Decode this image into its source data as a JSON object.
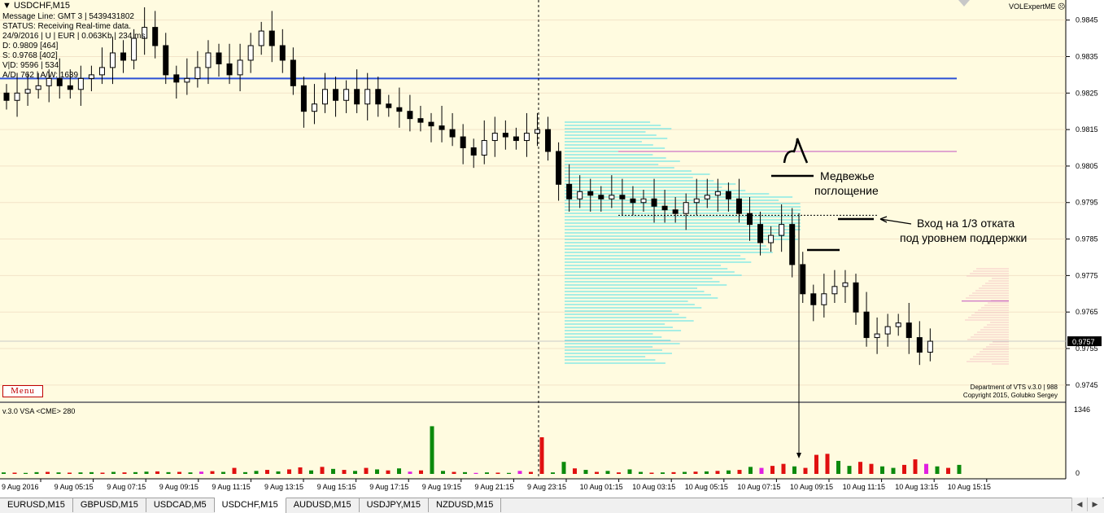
{
  "window": {
    "symbol_title": "USDCHF,M15",
    "info_lines": [
      "Message Line: GMT 3 | 5439431802",
      "STATUS:  Receiving Real-time data.",
      "24/9/2016 | U | EUR | 0.063Kb | 234 ms",
      "D: 0.9809  [464]",
      "S: 0.9768  [402]",
      "V|D: 9596 | 534",
      "A/D: 762 | A/W: 1639"
    ],
    "menu_label": "Menu",
    "vol_expert_label": "VOLExpertME",
    "copyright_lines": [
      "Department of VTS  v.3.0 | 988",
      "Copyright 2015, Golubko Sergey"
    ],
    "indicator_label": "v.3.0 VSA <CME> 280"
  },
  "annotations": {
    "bearish_engulfing": [
      "Медвежье",
      "поглощение"
    ],
    "entry_note": [
      "Вход на 1/3 отката",
      "под уровнем поддержки"
    ]
  },
  "tabs": [
    "EURUSD,M15",
    "GBPUSD,M15",
    "USDCAD,M5",
    "USDCHF,M15",
    "AUDUSD,M15",
    "USDJPY,M15",
    "NZDUSD,M15"
  ],
  "active_tab": "USDCHF,M15",
  "colors": {
    "chart_bg": "#fffbe0",
    "resistance_line": "#2b50d6",
    "profile": "#4fe0e8",
    "level_line": "#c050c0",
    "volume_up": "#0c8a0c",
    "volume_down": "#e01010",
    "volume_climax": "#e020e0",
    "price_tag": "#000000"
  },
  "chart_data": [
    {
      "type": "candlestick",
      "instrument": "USDCHF",
      "timeframe": "M15",
      "y_axis_ticks": [
        "0.9845",
        "0.9835",
        "0.9825",
        "0.9815",
        "0.9805",
        "0.9795",
        "0.9785",
        "0.9775",
        "0.9765",
        "0.9755",
        "0.9745"
      ],
      "ylim": [
        0.97405,
        0.98505
      ],
      "current_price": "0.9757",
      "x_tick_labels": [
        "9 Aug 2016",
        "9 Aug 05:15",
        "9 Aug 07:15",
        "9 Aug 09:15",
        "9 Aug 11:15",
        "9 Aug 13:15",
        "9 Aug 15:15",
        "9 Aug 17:15",
        "9 Aug 19:15",
        "9 Aug 21:15",
        "9 Aug 23:15",
        "10 Aug 01:15",
        "10 Aug 03:15",
        "10 Aug 05:15",
        "10 Aug 07:15",
        "10 Aug 09:15",
        "10 Aug 11:15",
        "10 Aug 13:15",
        "10 Aug 15:15"
      ],
      "levels": [
        {
          "value": 0.9829
        },
        {
          "value": 0.9809
        },
        {
          "value": 0.9768
        },
        {
          "value": 0.97915
        }
      ],
      "close_series": [
        0.9823,
        0.9825,
        0.9826,
        0.9827,
        0.9829,
        0.9827,
        0.9826,
        0.9829,
        0.983,
        0.9832,
        0.9836,
        0.9834,
        0.984,
        0.9843,
        0.9838,
        0.983,
        0.9828,
        0.9829,
        0.9832,
        0.9836,
        0.9833,
        0.983,
        0.9834,
        0.9838,
        0.9842,
        0.9838,
        0.9834,
        0.9827,
        0.982,
        0.9822,
        0.9826,
        0.9823,
        0.9826,
        0.9822,
        0.9826,
        0.9822,
        0.9821,
        0.982,
        0.9818,
        0.9817,
        0.9816,
        0.9815,
        0.9813,
        0.981,
        0.9808,
        0.9812,
        0.9814,
        0.9813,
        0.9812,
        0.9814,
        0.9815,
        0.9809,
        0.98,
        0.9796,
        0.9798,
        0.9797,
        0.9796,
        0.9797,
        0.9796,
        0.9795,
        0.9796,
        0.9794,
        0.9793,
        0.9792,
        0.9795,
        0.9796,
        0.9797,
        0.9798,
        0.9796,
        0.9792,
        0.9789,
        0.9784,
        0.9786,
        0.9789,
        0.9778,
        0.977,
        0.9767,
        0.977,
        0.9772,
        0.9773,
        0.9765,
        0.9758,
        0.9759,
        0.9761,
        0.9762,
        0.9758,
        0.9754,
        0.9757
      ],
      "volume_scale_label": "1346",
      "volume_zero_label": "0",
      "volumes": [
        30,
        25,
        20,
        35,
        40,
        30,
        25,
        30,
        35,
        25,
        40,
        30,
        35,
        45,
        50,
        35,
        40,
        30,
        45,
        55,
        40,
        120,
        35,
        60,
        80,
        50,
        90,
        130,
        70,
        140,
        100,
        80,
        60,
        120,
        90,
        70,
        110,
        45,
        70,
        950,
        60,
        40,
        35,
        20,
        30,
        25,
        20,
        60,
        40,
        730,
        30,
        240,
        110,
        80,
        40,
        60,
        30,
        90,
        40,
        25,
        30,
        35,
        40,
        45,
        50,
        60,
        70,
        80,
        140,
        120,
        160,
        200,
        150,
        120,
        380,
        400,
        260,
        160,
        240,
        200,
        150,
        120,
        180,
        290,
        200,
        150,
        120,
        180
      ],
      "volume_colors": [
        "u",
        "d",
        "u",
        "u",
        "d",
        "u",
        "d",
        "u",
        "u",
        "d",
        "u",
        "d",
        "u",
        "u",
        "d",
        "u",
        "d",
        "u",
        "m",
        "d",
        "u",
        "d",
        "u",
        "u",
        "d",
        "u",
        "d",
        "d",
        "u",
        "d",
        "u",
        "d",
        "u",
        "d",
        "u",
        "d",
        "u",
        "m",
        "d",
        "u",
        "u",
        "d",
        "u",
        "m",
        "u",
        "d",
        "u",
        "m",
        "d",
        "d",
        "u",
        "u",
        "d",
        "u",
        "d",
        "u",
        "d",
        "u",
        "u",
        "d",
        "u",
        "d",
        "u",
        "d",
        "u",
        "d",
        "u",
        "d",
        "u",
        "m",
        "d",
        "d",
        "u",
        "d",
        "d",
        "d",
        "u",
        "u",
        "d",
        "d",
        "u",
        "u",
        "d",
        "d",
        "m",
        "u",
        "d",
        "u"
      ]
    }
  ]
}
